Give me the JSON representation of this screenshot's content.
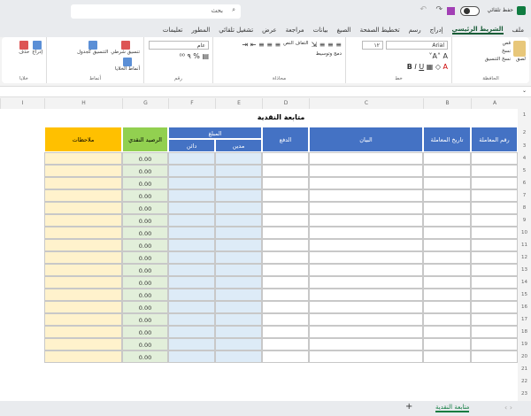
{
  "titlebar": {
    "autosave": "حفظ تلقائي",
    "search_placeholder": "بحث"
  },
  "tabs": [
    "ملف",
    "الشريط الرئيسي",
    "إدراج",
    "رسم",
    "تخطيط الصفحة",
    "الصيغ",
    "بيانات",
    "مراجعة",
    "عرض",
    "تشغيل تلقائي",
    "المطور",
    "تعليمات"
  ],
  "ribbon": {
    "clipboard": {
      "label": "الحافظة",
      "paste": "لصق",
      "cut": "قص",
      "copy": "نسخ",
      "format_painter": "نسخ التنسيق"
    },
    "font": {
      "label": "خط",
      "font_name": "Arial",
      "font_size": "١٢"
    },
    "alignment": {
      "label": "محاذاة",
      "wrap": "التفاف النص",
      "merge": "دمج وتوسيط"
    },
    "number": {
      "label": "رقم",
      "format": "عام"
    },
    "styles": {
      "label": "أنماط",
      "conditional": "تنسيق شرطي",
      "as_table": "التنسيق كجدول",
      "cell_styles": "أنماط الخلايا"
    },
    "cells": {
      "label": "خلايا",
      "insert": "إدراج",
      "delete": "حذف"
    }
  },
  "columns": [
    "A",
    "B",
    "C",
    "D",
    "E",
    "F",
    "G",
    "H",
    "I"
  ],
  "sheet": {
    "title": "متابعة النقدية",
    "headers": {
      "txn_no": "رقم المعاملة",
      "txn_date": "تاريخ المعاملة",
      "statement": "البيان",
      "payment": "الدفع",
      "amount": "المبلغ",
      "debit": "مدين",
      "credit": "دائن",
      "balance": "الرصيد النقدي",
      "notes": "ملاحظات"
    },
    "balance_values": [
      "0.00",
      "0.00",
      "0.00",
      "0.00",
      "0.00",
      "0.00",
      "0.00",
      "0.00",
      "0.00",
      "0.00",
      "0.00",
      "0.00",
      "0.00",
      "0.00",
      "0.00",
      "0.00",
      "0.00"
    ],
    "colors": {
      "header_blue": "#4472c4",
      "balance_green": "#92d050",
      "notes_orange": "#ffc000",
      "amount_fill": "#ddebf7",
      "balance_fill": "#e2efda",
      "notes_fill": "#fff2cc"
    }
  },
  "sheet_tab": "متابعة النقدية",
  "add_sheet": "+"
}
